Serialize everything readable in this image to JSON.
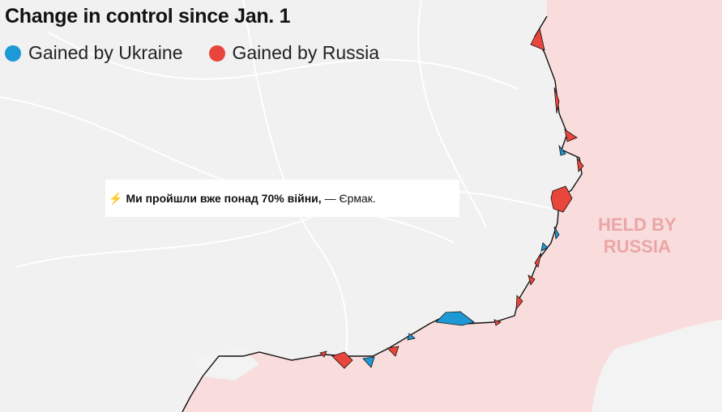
{
  "header": {
    "title": "Change in control since Jan. 1"
  },
  "legend": [
    {
      "name": "Gained by Ukraine",
      "color": "#1d9ad6"
    },
    {
      "name": "Gained by Russia",
      "color": "#e8463d"
    }
  ],
  "map_label": {
    "lines": [
      "HELD BY",
      "RUSSIA"
    ]
  },
  "banner": {
    "icon": "⚡",
    "headline": "Ми пройшли вже понад 70% війни,",
    "source": "— Єрмак."
  }
}
